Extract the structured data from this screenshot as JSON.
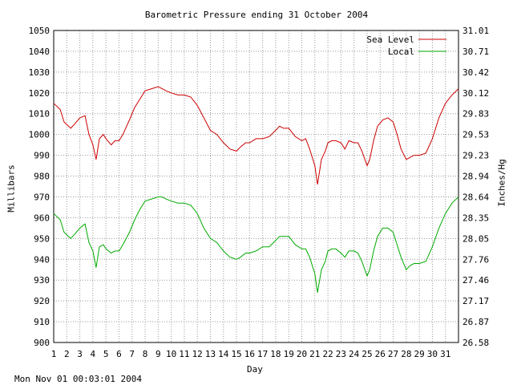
{
  "chart_data": {
    "type": "line",
    "title": "Barometric Pressure ending 31 October 2004",
    "xlabel": "Day",
    "ylabel": "Millibars",
    "ylabel_right": "Inches/Hg",
    "timestamp": "Mon Nov 01 00:03:01 2004",
    "xlim": [
      1,
      32
    ],
    "ylim": [
      900,
      1050
    ],
    "ylim_right": [
      26.58,
      31.01
    ],
    "x_ticks": [
      1,
      2,
      3,
      4,
      5,
      6,
      7,
      8,
      9,
      10,
      11,
      12,
      13,
      14,
      15,
      16,
      17,
      18,
      19,
      20,
      21,
      22,
      23,
      24,
      25,
      26,
      27,
      28,
      29,
      30,
      31
    ],
    "y_ticks": [
      900,
      910,
      920,
      930,
      940,
      950,
      960,
      970,
      980,
      990,
      1000,
      1010,
      1020,
      1030,
      1040,
      1050
    ],
    "y_ticks_right": [
      "26.58",
      "26.87",
      "27.17",
      "27.46",
      "27.76",
      "28.05",
      "28.35",
      "28.64",
      "28.94",
      "29.23",
      "29.53",
      "29.83",
      "30.12",
      "30.42",
      "30.71",
      "31.01"
    ],
    "grid": true,
    "legend_position": "top-right",
    "series": [
      {
        "name": "Sea Level",
        "color": "#cc0000",
        "x": [
          1.0,
          1.5,
          1.8,
          2.3,
          2.6,
          3.0,
          3.4,
          3.7,
          4.0,
          4.25,
          4.5,
          4.8,
          5.0,
          5.4,
          5.7,
          6.0,
          6.3,
          6.8,
          7.2,
          7.6,
          8.0,
          8.5,
          9.0,
          9.3,
          9.6,
          10.0,
          10.5,
          11.0,
          11.5,
          12.0,
          12.5,
          13.0,
          13.5,
          14.0,
          14.5,
          15.0,
          15.3,
          15.7,
          16.0,
          16.5,
          17.0,
          17.5,
          18.0,
          18.3,
          18.6,
          19.0,
          19.5,
          20.0,
          20.3,
          20.6,
          21.0,
          21.2,
          21.5,
          21.8,
          22.0,
          22.3,
          22.6,
          23.0,
          23.3,
          23.6,
          24.0,
          24.3,
          24.6,
          25.0,
          25.2,
          25.5,
          25.8,
          26.2,
          26.6,
          27.0,
          27.3,
          27.6,
          28.0,
          28.3,
          28.6,
          29.0,
          29.5,
          30.0,
          30.5,
          31.0,
          31.5,
          32.0
        ],
        "y": [
          1015,
          1012,
          1006,
          1003,
          1005,
          1008,
          1009,
          1000,
          995,
          988,
          998,
          1000,
          998,
          995,
          997,
          997,
          1000,
          1007,
          1013,
          1017,
          1021,
          1022,
          1023,
          1022,
          1021,
          1020,
          1019,
          1019,
          1018,
          1014,
          1008,
          1002,
          1000,
          996,
          993,
          992,
          994,
          996,
          996,
          998,
          998,
          999,
          1002,
          1004,
          1003,
          1003,
          999,
          997,
          998,
          993,
          985,
          976,
          988,
          992,
          996,
          997,
          997,
          996,
          993,
          997,
          996,
          996,
          992,
          985,
          988,
          997,
          1004,
          1007,
          1008,
          1006,
          1000,
          993,
          988,
          989,
          990,
          990,
          991,
          998,
          1008,
          1015,
          1019,
          1022
        ]
      },
      {
        "name": "Local",
        "color": "#00aa00",
        "x": [
          1.0,
          1.5,
          1.8,
          2.3,
          2.6,
          3.0,
          3.4,
          3.7,
          4.0,
          4.25,
          4.5,
          4.8,
          5.0,
          5.4,
          5.7,
          6.0,
          6.3,
          6.8,
          7.2,
          7.6,
          8.0,
          8.5,
          9.0,
          9.3,
          9.6,
          10.0,
          10.5,
          11.0,
          11.5,
          12.0,
          12.5,
          13.0,
          13.5,
          14.0,
          14.5,
          15.0,
          15.3,
          15.7,
          16.0,
          16.5,
          17.0,
          17.5,
          18.0,
          18.3,
          18.6,
          19.0,
          19.5,
          20.0,
          20.3,
          20.6,
          21.0,
          21.2,
          21.5,
          21.8,
          22.0,
          22.3,
          22.6,
          23.0,
          23.3,
          23.6,
          24.0,
          24.3,
          24.6,
          25.0,
          25.2,
          25.5,
          25.8,
          26.2,
          26.6,
          27.0,
          27.3,
          27.6,
          28.0,
          28.3,
          28.6,
          29.0,
          29.5,
          30.0,
          30.5,
          31.0,
          31.5,
          32.0
        ],
        "y": [
          962,
          959,
          953,
          950,
          952,
          955,
          957,
          948,
          944,
          936,
          946,
          947,
          945,
          943,
          944,
          944,
          947,
          953,
          959,
          964,
          968,
          969,
          970,
          970,
          969,
          968,
          967,
          967,
          966,
          962,
          955,
          950,
          948,
          944,
          941,
          940,
          941,
          943,
          943,
          944,
          946,
          946,
          949,
          951,
          951,
          951,
          947,
          945,
          945,
          941,
          933,
          924,
          935,
          939,
          944,
          945,
          945,
          943,
          941,
          944,
          944,
          943,
          939,
          932,
          935,
          944,
          951,
          955,
          955,
          953,
          947,
          941,
          935,
          937,
          938,
          938,
          939,
          946,
          955,
          962,
          967,
          970
        ]
      }
    ]
  }
}
